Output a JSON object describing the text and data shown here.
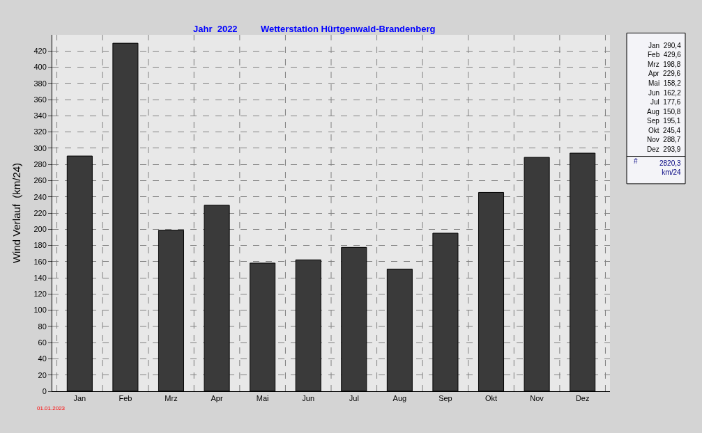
{
  "chart_data": {
    "type": "bar",
    "title": "Jahr  2022",
    "subtitle": "Wetterstation Hürtgenwald-Brandenberg",
    "ylabel": "Wind Verlauf  (km/24)",
    "categories": [
      "Jan",
      "Feb",
      "Mrz",
      "Apr",
      "Mai",
      "Jun",
      "Jul",
      "Aug",
      "Sep",
      "Okt",
      "Nov",
      "Dez"
    ],
    "values": [
      290.4,
      429.6,
      198.8,
      229.6,
      158.2,
      162.2,
      177.6,
      150.8,
      195.1,
      245.4,
      288.7,
      293.9
    ],
    "value_labels": [
      "290,4",
      "429,6",
      "198,8",
      "229,6",
      "158,2",
      "162,2",
      "177,6",
      "150,8",
      "195,1",
      "245,4",
      "288,7",
      "293,9"
    ],
    "color": "#3a3a3a",
    "ylim": [
      0,
      440
    ],
    "yticks": [
      0,
      20,
      40,
      60,
      80,
      100,
      120,
      140,
      160,
      180,
      200,
      220,
      240,
      260,
      280,
      300,
      320,
      340,
      360,
      380,
      400,
      420
    ],
    "grid": true,
    "annotations": [
      "# 2820,3 km/24",
      "01.01.2023"
    ]
  }
}
